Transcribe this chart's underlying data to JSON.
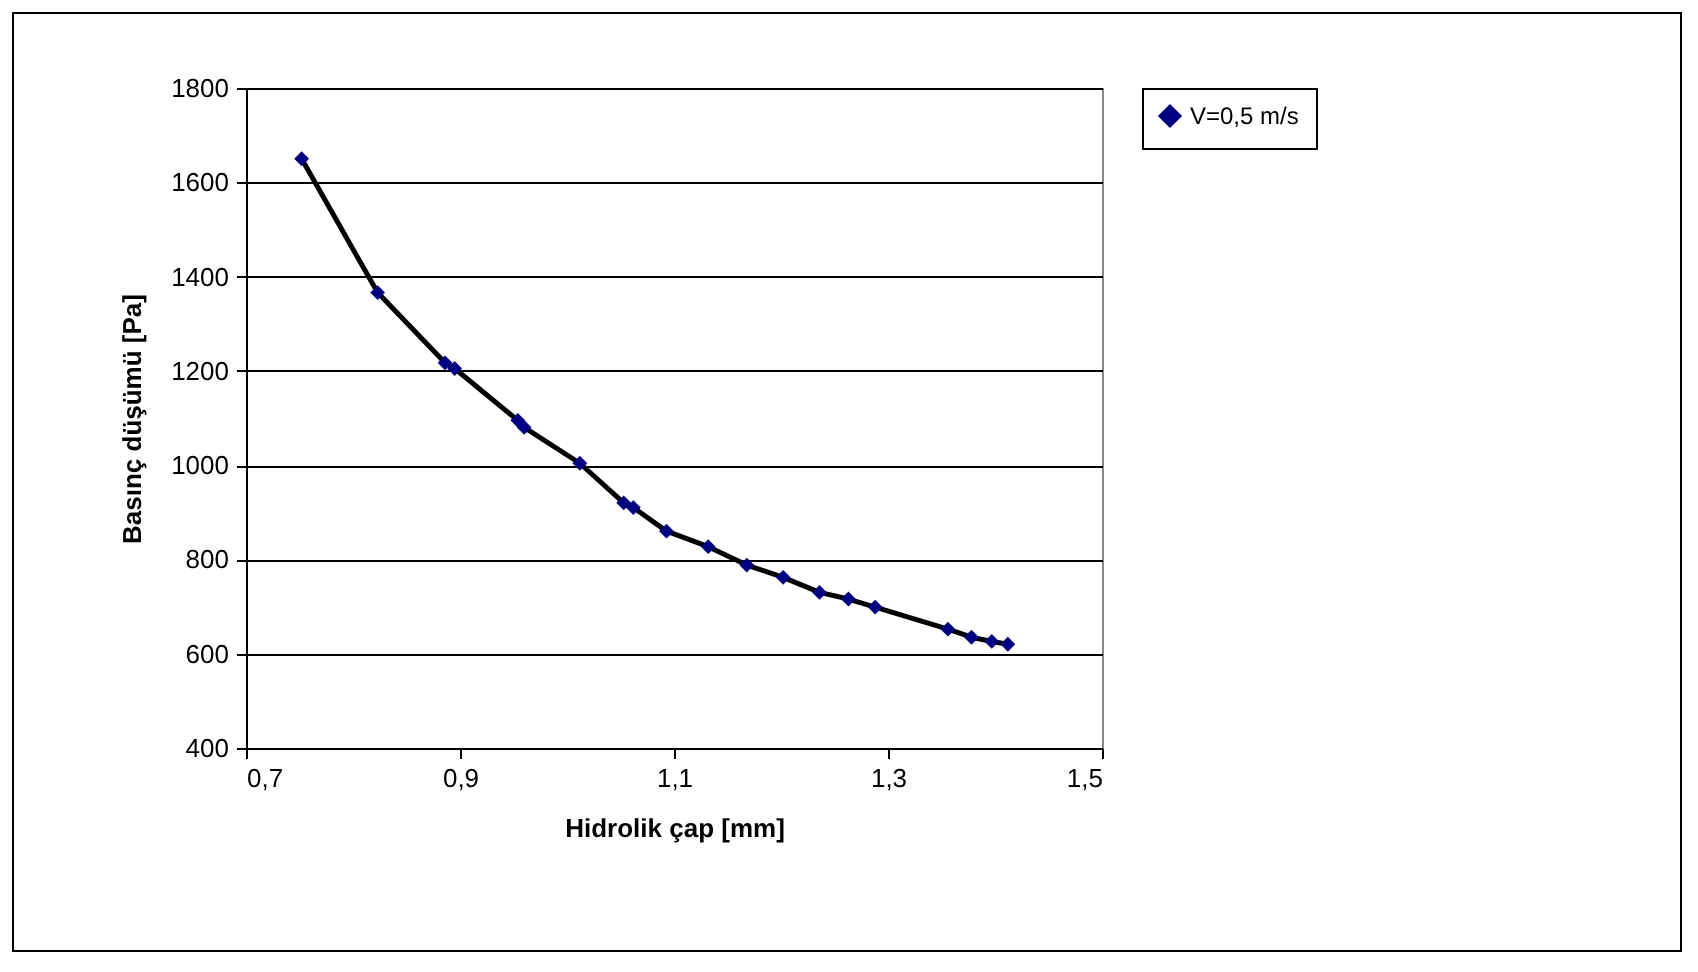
{
  "chart_data": {
    "type": "scatter",
    "xlabel": "Hidrolik çap [mm]",
    "ylabel": "Basınç düşümü [Pa]",
    "xlim": [
      0.7,
      1.5
    ],
    "xticks": [
      {
        "value": 0.7,
        "label": "0,7"
      },
      {
        "value": 0.9,
        "label": "0,9"
      },
      {
        "value": 1.1,
        "label": "1,1"
      },
      {
        "value": 1.3,
        "label": "1,3"
      },
      {
        "value": 1.5,
        "label": "1,5"
      }
    ],
    "ylim": [
      400,
      1800
    ],
    "yticks": [
      400,
      600,
      800,
      1000,
      1200,
      1400,
      1600,
      1800
    ],
    "grid": "y",
    "legend": "right",
    "series": [
      {
        "name": "V=0,5 m/s",
        "marker": "diamond",
        "color": "#000080",
        "x": [
          0.752,
          0.823,
          0.886,
          0.895,
          0.954,
          0.96,
          1.012,
          1.053,
          1.062,
          1.093,
          1.132,
          1.168,
          1.202,
          1.236,
          1.263,
          1.288,
          1.356,
          1.378,
          1.397,
          1.412
        ],
        "values": [
          1650,
          1366,
          1217,
          1205,
          1095,
          1080,
          1004,
          920,
          910,
          860,
          827,
          788,
          762,
          730,
          716,
          699,
          652,
          635,
          626,
          620
        ]
      },
      {
        "type": "line",
        "color": "#000000",
        "line_style": "solid",
        "x": [
          0.752,
          0.823,
          0.886,
          0.895,
          0.954,
          0.96,
          1.012,
          1.053,
          1.062,
          1.093,
          1.132,
          1.168,
          1.202,
          1.236,
          1.263,
          1.288,
          1.356,
          1.378,
          1.397,
          1.412
        ],
        "values": [
          1650,
          1366,
          1217,
          1205,
          1095,
          1080,
          1004,
          920,
          910,
          860,
          827,
          788,
          762,
          730,
          716,
          699,
          652,
          635,
          626,
          620
        ]
      }
    ]
  }
}
